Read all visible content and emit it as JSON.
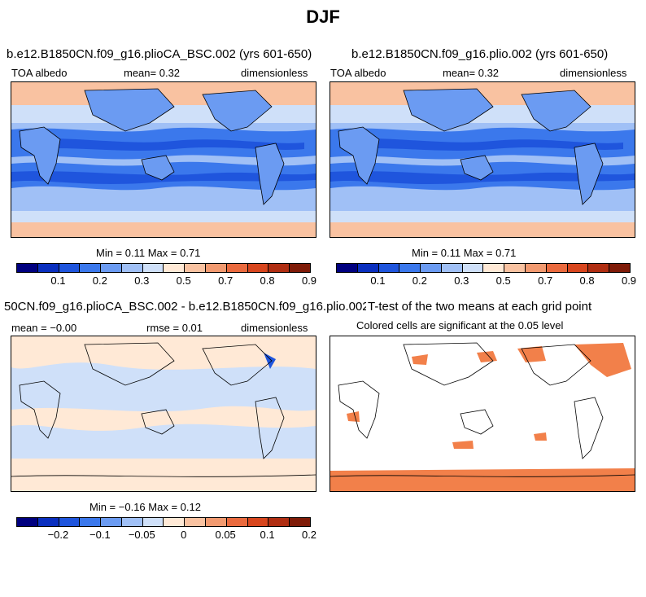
{
  "figure": {
    "title": "DJF"
  },
  "panels": [
    {
      "title": "b.e12.B1850CN.f09_g16.plioCA_BSC.002 (yrs 601-650)",
      "left_label": "TOA albedo",
      "center_label": "mean=   0.32",
      "right_label": "dimensionless",
      "stats": "Min =   0.11 Max =   0.71"
    },
    {
      "title": "b.e12.B1850CN.f09_g16.plio.002 (yrs 601-650)",
      "left_label": "TOA albedo",
      "center_label": "mean=   0.32",
      "right_label": "dimensionless",
      "stats": "Min =   0.11 Max =   0.71"
    },
    {
      "title": "50CN.f09_g16.plioCA_BSC.002 - b.e12.B1850CN.f09_g16.plio.002",
      "left_label": "mean =  −0.00",
      "center_label": "rmse =   0.01",
      "right_label": "dimensionless",
      "stats": "Min =  −0.16 Max =   0.12"
    },
    {
      "title": "T-test of the two means at each grid point",
      "subtitle": "Colored cells are significant at the 0.05 level"
    }
  ],
  "colorbars": {
    "albedo": {
      "colors": [
        "#00007f",
        "#0a2fbf",
        "#1f55dd",
        "#3b78ec",
        "#6b9bf2",
        "#a0c0f6",
        "#cfe0f9",
        "#ffe9d6",
        "#f9c2a1",
        "#f29a70",
        "#ea6a3e",
        "#d8461e",
        "#b02e12",
        "#7f1b08"
      ],
      "tick_labels": [
        "0.1",
        "0.2",
        "0.3",
        "0.5",
        "0.7",
        "0.8",
        "0.9"
      ]
    },
    "difference": {
      "colors": [
        "#00007f",
        "#0a2fbf",
        "#1f55dd",
        "#3b78ec",
        "#6b9bf2",
        "#a0c0f6",
        "#cfe0f9",
        "#ffe9d6",
        "#f9c2a1",
        "#f29a70",
        "#ea6a3e",
        "#d8461e",
        "#b02e12",
        "#7f1b08"
      ],
      "tick_labels": [
        "−0.2",
        "−0.1",
        "−0.05",
        "0",
        "0.05",
        "0.1",
        "0.2"
      ]
    }
  },
  "chart_data": [
    {
      "type": "heatmap",
      "title": "b.e12.B1850CN.f09_g16.plioCA_BSC.002 (yrs 601-650)",
      "variable": "TOA albedo",
      "units": "dimensionless",
      "mean": 0.32,
      "min": 0.11,
      "max": 0.71,
      "colorbar_ticks": [
        0.1,
        0.2,
        0.3,
        0.5,
        0.7,
        0.8,
        0.9
      ]
    },
    {
      "type": "heatmap",
      "title": "b.e12.B1850CN.f09_g16.plio.002 (yrs 601-650)",
      "variable": "TOA albedo",
      "units": "dimensionless",
      "mean": 0.32,
      "min": 0.11,
      "max": 0.71,
      "colorbar_ticks": [
        0.1,
        0.2,
        0.3,
        0.5,
        0.7,
        0.8,
        0.9
      ]
    },
    {
      "type": "heatmap",
      "title": "50CN.f09_g16.plioCA_BSC.002 - b.e12.B1850CN.f09_g16.plio.002",
      "units": "dimensionless",
      "mean": -0.0,
      "rmse": 0.01,
      "min": -0.16,
      "max": 0.12,
      "colorbar_ticks": [
        -0.2,
        -0.1,
        -0.05,
        0,
        0.05,
        0.1,
        0.2
      ]
    },
    {
      "type": "heatmap",
      "title": "T-test of the two means at each grid point",
      "subtitle": "Colored cells are significant at the 0.05 level",
      "significance_level": 0.05
    }
  ]
}
